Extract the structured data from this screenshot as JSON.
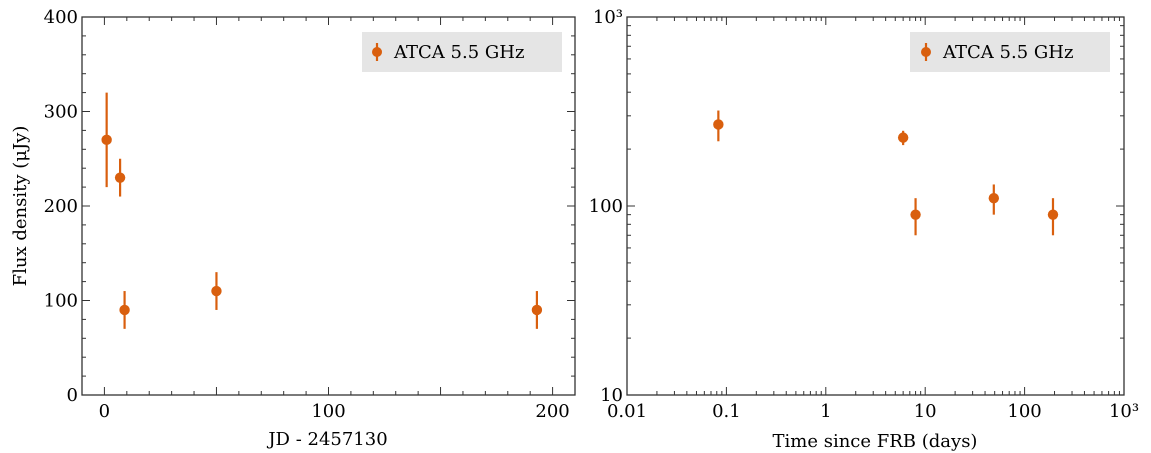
{
  "chart_data": [
    {
      "type": "scatter",
      "xlabel": "JD - 2457130",
      "ylabel": "Flux density (μJy)",
      "xlim": [
        -10,
        210
      ],
      "ylim": [
        0,
        400
      ],
      "xticks": [
        0,
        100,
        200
      ],
      "yticks": [
        0,
        100,
        200,
        300,
        400
      ],
      "x_scale": "linear",
      "y_scale": "linear",
      "legend": {
        "entries": [
          "ATCA 5.5 GHz"
        ],
        "position": "top-right"
      },
      "series": [
        {
          "name": "ATCA 5.5 GHz",
          "color": "#d95f0e",
          "points": [
            {
              "x": 1,
              "y": 270,
              "err": 50
            },
            {
              "x": 7,
              "y": 230,
              "err": 20
            },
            {
              "x": 9,
              "y": 90,
              "err": 20
            },
            {
              "x": 50,
              "y": 110,
              "err": 20
            },
            {
              "x": 193,
              "y": 90,
              "err": 20
            }
          ]
        }
      ]
    },
    {
      "type": "scatter",
      "xlabel": "Time since FRB (days)",
      "ylabel": "",
      "xlim": [
        0.01,
        1000
      ],
      "ylim": [
        10,
        1000
      ],
      "x_scale": "log",
      "y_scale": "log",
      "xticks": [
        0.01,
        0.1,
        1,
        10,
        100,
        1000
      ],
      "xtick_labels": [
        "0.01",
        "0.1",
        "1",
        "10",
        "100",
        "10³"
      ],
      "yticks": [
        10,
        100,
        1000
      ],
      "ytick_labels": [
        "10",
        "100",
        "10³"
      ],
      "legend": {
        "entries": [
          "ATCA 5.5 GHz"
        ],
        "position": "top-right"
      },
      "series": [
        {
          "name": "ATCA 5.5 GHz",
          "color": "#d95f0e",
          "points": [
            {
              "x": 0.083,
              "y": 270,
              "err": 50
            },
            {
              "x": 6,
              "y": 230,
              "err": 20
            },
            {
              "x": 8,
              "y": 90,
              "err": 20
            },
            {
              "x": 49,
              "y": 110,
              "err": 20
            },
            {
              "x": 193,
              "y": 90,
              "err": 20
            }
          ]
        }
      ]
    }
  ]
}
